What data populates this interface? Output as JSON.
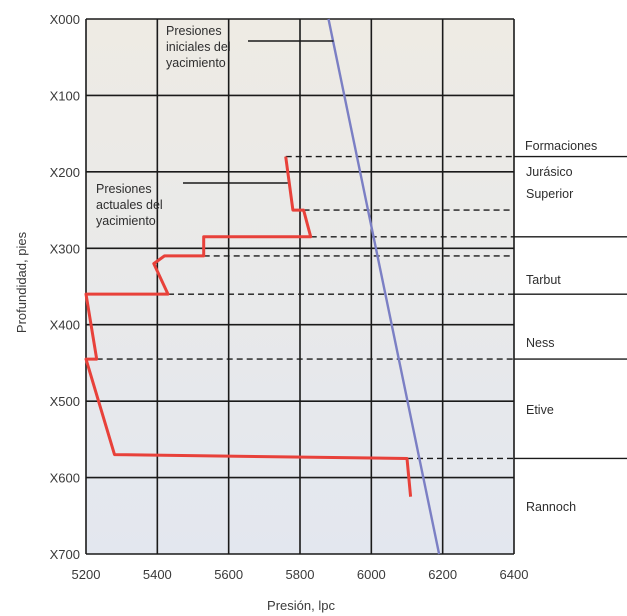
{
  "chart_data": {
    "type": "line",
    "xlabel": "Presión, lpc",
    "ylabel": "Profundidad, pies",
    "xlim": [
      5200,
      6400
    ],
    "ylim": [
      700,
      0
    ],
    "x_ticks": [
      5200,
      5400,
      5600,
      5800,
      6000,
      6200,
      6400
    ],
    "x_tick_labels": [
      "5200",
      "5400",
      "5600",
      "5800",
      "6000",
      "6200",
      "6400"
    ],
    "y_ticks": [
      0,
      100,
      200,
      300,
      400,
      500,
      600,
      700
    ],
    "y_tick_labels": [
      "X000",
      "X100",
      "X200",
      "X300",
      "X400",
      "X500",
      "X600",
      "X700"
    ],
    "grid": true,
    "colors": {
      "initial": "#7b7fc4",
      "current": "#e8413a",
      "grid": "#1a1a1a",
      "plot_bg": "#ecebe7"
    },
    "series": [
      {
        "name": "Presiones iniciales del yacimiento",
        "color": "#7b7fc4",
        "points": [
          [
            5880,
            0
          ],
          [
            6190,
            700
          ]
        ]
      },
      {
        "name": "Presiones actuales del yacimiento",
        "color": "#e8413a",
        "points": [
          [
            5760,
            180
          ],
          [
            5780,
            250
          ],
          [
            5810,
            250
          ],
          [
            5830,
            285
          ],
          [
            5530,
            285
          ],
          [
            5530,
            310
          ],
          [
            5420,
            310
          ],
          [
            5390,
            320
          ],
          [
            5430,
            360
          ],
          [
            5200,
            360
          ],
          [
            5230,
            445
          ],
          [
            5200,
            445
          ],
          [
            5280,
            570
          ],
          [
            6100,
            575
          ],
          [
            6110,
            625
          ]
        ]
      }
    ],
    "dashed_boundaries": [
      {
        "depth": 180,
        "x_start": 5760
      },
      {
        "depth": 250,
        "x_start": 5810
      },
      {
        "depth": 285,
        "x_start": 5830
      },
      {
        "depth": 310,
        "x_start": 5530
      },
      {
        "depth": 360,
        "x_start": 5430
      },
      {
        "depth": 445,
        "x_start": 5230
      },
      {
        "depth": 575,
        "x_start": 6100
      }
    ],
    "formation_boundaries": [
      180,
      285,
      360,
      445,
      575
    ],
    "formations_header": "Formaciones",
    "formations": [
      {
        "label_lines": [
          "Jurásico",
          "Superior"
        ]
      },
      {
        "label_lines": [
          "Tarbut"
        ]
      },
      {
        "label_lines": [
          "Ness"
        ]
      },
      {
        "label_lines": [
          "Etive"
        ]
      },
      {
        "label_lines": [
          "Rannoch"
        ]
      }
    ],
    "annotations": [
      {
        "lines": [
          "Presiones",
          "iniciales del",
          "yacimiento"
        ],
        "target_series": 0
      },
      {
        "lines": [
          "Presiones",
          "actuales del",
          "yacimiento"
        ],
        "target_series": 1
      }
    ]
  }
}
